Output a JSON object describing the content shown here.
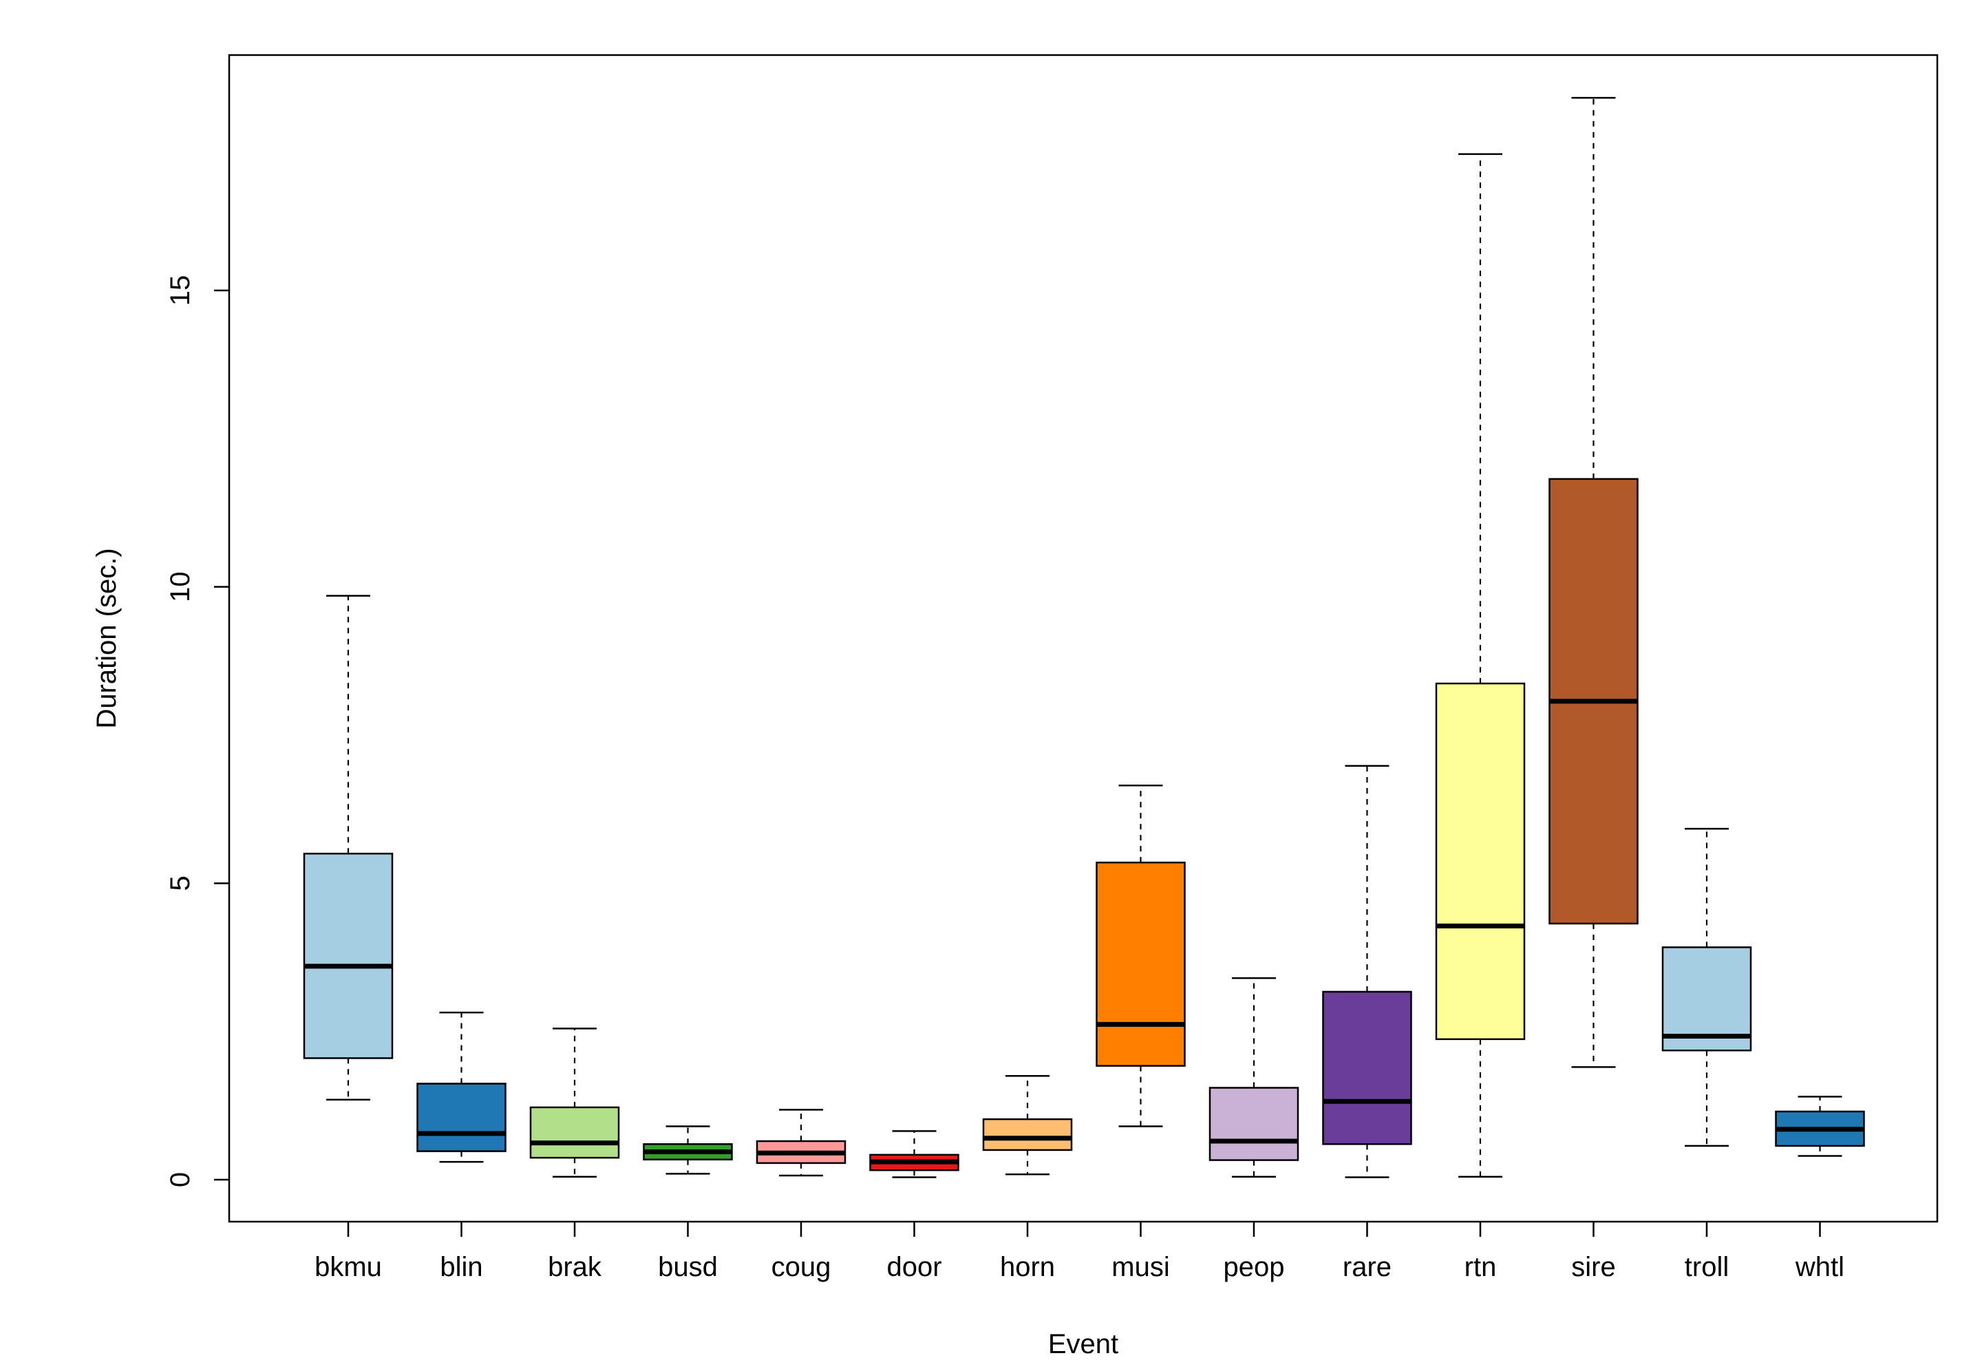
{
  "chart_data": {
    "type": "boxplot",
    "title": "",
    "xlabel": "Event",
    "ylabel": "Duration (sec.)",
    "ylim": [
      -0.7,
      19.0
    ],
    "yticks": [
      0,
      5,
      10,
      15
    ],
    "yticklabels": [
      "0",
      "5",
      "10",
      "15"
    ],
    "grid": false,
    "categories": [
      "bkmu",
      "blin",
      "brak",
      "busd",
      "coug",
      "door",
      "horn",
      "musi",
      "peop",
      "rare",
      "rtn",
      "sire",
      "troll",
      "whtl"
    ],
    "boxes": [
      {
        "name": "bkmu",
        "min": 1.35,
        "q1": 2.05,
        "median": 3.6,
        "q3": 5.5,
        "max": 9.85,
        "color": "#A6CEE3"
      },
      {
        "name": "blin",
        "min": 0.3,
        "q1": 0.48,
        "median": 0.78,
        "q3": 1.62,
        "max": 2.82,
        "color": "#1F78B4"
      },
      {
        "name": "brak",
        "min": 0.05,
        "q1": 0.37,
        "median": 0.62,
        "q3": 1.22,
        "max": 2.55,
        "color": "#B2DF8A"
      },
      {
        "name": "busd",
        "min": 0.1,
        "q1": 0.34,
        "median": 0.47,
        "q3": 0.6,
        "max": 0.9,
        "color": "#33A02C"
      },
      {
        "name": "coug",
        "min": 0.07,
        "q1": 0.28,
        "median": 0.45,
        "q3": 0.65,
        "max": 1.18,
        "color": "#FB9A99"
      },
      {
        "name": "door",
        "min": 0.04,
        "q1": 0.16,
        "median": 0.3,
        "q3": 0.42,
        "max": 0.82,
        "color": "#E31A1C"
      },
      {
        "name": "horn",
        "min": 0.09,
        "q1": 0.5,
        "median": 0.7,
        "q3": 1.02,
        "max": 1.75,
        "color": "#FDBF6F"
      },
      {
        "name": "musi",
        "min": 0.9,
        "q1": 1.92,
        "median": 2.62,
        "q3": 5.35,
        "max": 6.65,
        "color": "#FF7F00"
      },
      {
        "name": "peop",
        "min": 0.05,
        "q1": 0.33,
        "median": 0.65,
        "q3": 1.55,
        "max": 3.4,
        "color": "#CAB2D6"
      },
      {
        "name": "rare",
        "min": 0.04,
        "q1": 0.6,
        "median": 1.32,
        "q3": 3.17,
        "max": 6.98,
        "color": "#6A3D9A"
      },
      {
        "name": "rtn",
        "min": 0.05,
        "q1": 2.37,
        "median": 4.28,
        "q3": 8.37,
        "max": 17.3,
        "color": "#FFFF99"
      },
      {
        "name": "sire",
        "min": 1.9,
        "q1": 4.32,
        "median": 8.07,
        "q3": 11.82,
        "max": 18.25,
        "color": "#B15928"
      },
      {
        "name": "troll",
        "min": 0.57,
        "q1": 2.18,
        "median": 2.42,
        "q3": 3.92,
        "max": 5.92,
        "color": "#A6CEE3"
      },
      {
        "name": "whtl",
        "min": 0.4,
        "q1": 0.57,
        "median": 0.85,
        "q3": 1.15,
        "max": 1.4,
        "color": "#1F78B4"
      }
    ]
  }
}
